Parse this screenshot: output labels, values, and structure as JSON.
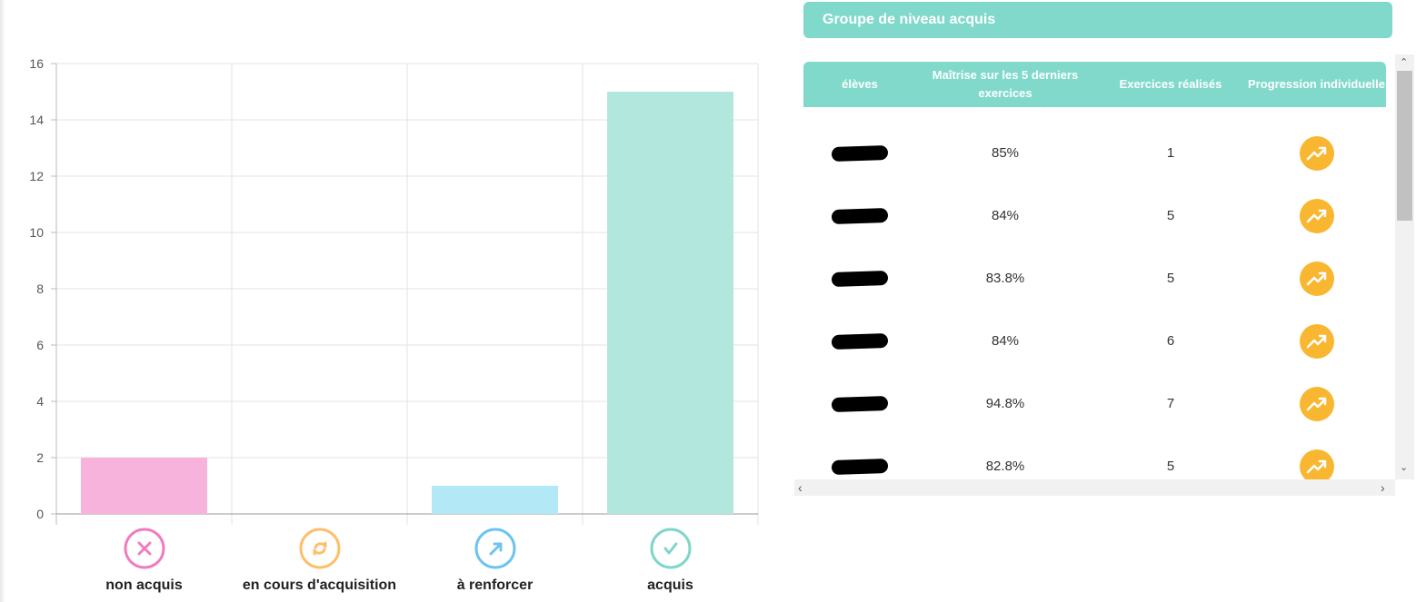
{
  "chart_data": {
    "type": "bar",
    "categories": [
      "non acquis",
      "en cours d'acquisition",
      "à renforcer",
      "acquis"
    ],
    "values": [
      2,
      0,
      1,
      15
    ],
    "colors": [
      "#f7b3dc",
      "#ffd59e",
      "#b3e8f7",
      "#b2e7de"
    ],
    "icon_colors": [
      "#f07cc0",
      "#ffbe6b",
      "#6cc4ef",
      "#7ed6c8"
    ],
    "icons": [
      "x-circle-icon",
      "refresh-circle-icon",
      "arrow-up-right-circle-icon",
      "check-circle-icon"
    ],
    "ylim": [
      0,
      16
    ],
    "yticks": [
      "0",
      "2",
      "4",
      "6",
      "8",
      "10",
      "12",
      "14",
      "16"
    ],
    "grid": true
  },
  "panel": {
    "title": "Groupe de niveau acquis",
    "headers": [
      "élèves",
      "Maîtrise sur les 5 derniers exercices",
      "Exercices réalisés",
      "Progression individuelle"
    ],
    "rows": [
      {
        "mastery": "85%",
        "exercises": "1"
      },
      {
        "mastery": "84%",
        "exercises": "5"
      },
      {
        "mastery": "83.8%",
        "exercises": "5"
      },
      {
        "mastery": "84%",
        "exercises": "6"
      },
      {
        "mastery": "94.8%",
        "exercises": "7"
      },
      {
        "mastery": "82.8%",
        "exercises": "5"
      }
    ],
    "progress_icon": "trending-up-icon",
    "progress_color": "#f9b731"
  }
}
